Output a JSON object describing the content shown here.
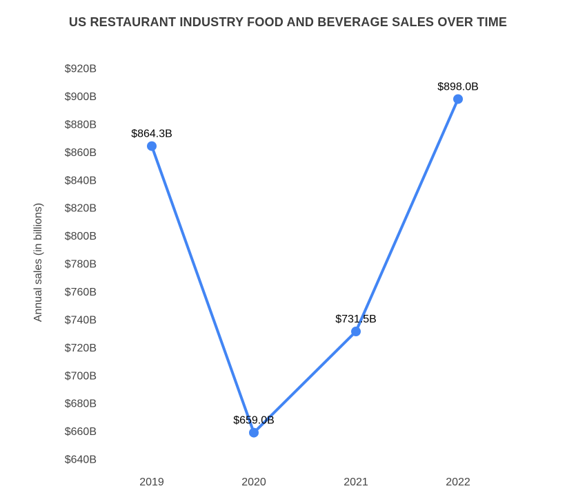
{
  "chart_data": {
    "type": "line",
    "title": "US RESTAURANT INDUSTRY FOOD AND BEVERAGE SALES OVER TIME",
    "ylabel": "Annual sales (in billions)",
    "xlabel": "",
    "categories": [
      "2019",
      "2020",
      "2021",
      "2022"
    ],
    "series": [
      {
        "name": "Annual sales",
        "values": [
          864.3,
          659.0,
          731.5,
          898.0
        ]
      }
    ],
    "data_labels": [
      "$864.3B",
      "$659.0B",
      "$731.5B",
      "$898.0B"
    ],
    "y_ticks": [
      {
        "value": 920,
        "label": "$920B"
      },
      {
        "value": 900,
        "label": "$900B"
      },
      {
        "value": 880,
        "label": "$880B"
      },
      {
        "value": 860,
        "label": "$860B"
      },
      {
        "value": 840,
        "label": "$840B"
      },
      {
        "value": 820,
        "label": "$820B"
      },
      {
        "value": 800,
        "label": "$800B"
      },
      {
        "value": 780,
        "label": "$780B"
      },
      {
        "value": 760,
        "label": "$760B"
      },
      {
        "value": 740,
        "label": "$740B"
      },
      {
        "value": 720,
        "label": "$720B"
      },
      {
        "value": 700,
        "label": "$700B"
      },
      {
        "value": 680,
        "label": "$680B"
      },
      {
        "value": 660,
        "label": "$660B"
      },
      {
        "value": 640,
        "label": "$640B"
      }
    ],
    "ylim": [
      640,
      920
    ],
    "grid": false,
    "legend": "none",
    "colors": {
      "line": "#4285f4",
      "marker": "#4285f4",
      "title_text": "#3d3d3d",
      "axis_text": "#444444",
      "data_label_text": "#000000"
    }
  }
}
